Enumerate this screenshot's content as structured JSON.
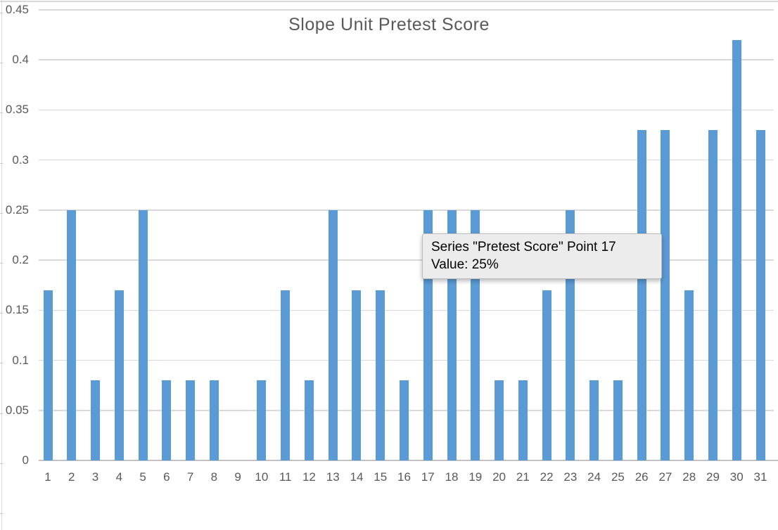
{
  "chart_data": {
    "type": "bar",
    "title": "Slope Unit Pretest Score",
    "series_name": "Pretest Score",
    "categories": [
      "1",
      "2",
      "3",
      "4",
      "5",
      "6",
      "7",
      "8",
      "9",
      "10",
      "11",
      "12",
      "13",
      "14",
      "15",
      "16",
      "17",
      "18",
      "19",
      "20",
      "21",
      "22",
      "23",
      "24",
      "25",
      "26",
      "27",
      "28",
      "29",
      "30",
      "31"
    ],
    "values": [
      0.17,
      0.25,
      0.08,
      0.17,
      0.25,
      0.08,
      0.08,
      0.08,
      0,
      0.08,
      0.17,
      0.08,
      0.25,
      0.17,
      0.17,
      0.08,
      0.25,
      0.25,
      0.25,
      0.08,
      0.08,
      0.17,
      0.25,
      0.08,
      0.08,
      0.33,
      0.33,
      0.17,
      0.33,
      0.42,
      0.33
    ],
    "xlabel": "",
    "ylabel": "",
    "ylim": [
      0,
      0.45
    ],
    "y_ticks": [
      "0",
      "0.05",
      "0.1",
      "0.15",
      "0.2",
      "0.25",
      "0.3",
      "0.35",
      "0.4",
      "0.45"
    ],
    "grid": true,
    "legend": false
  },
  "tooltip": {
    "line1": "Series \"Pretest Score\" Point 17",
    "line2": "Value: 25%"
  },
  "colors": {
    "bar": "#5B9BD5",
    "gridline": "#D9D9D9",
    "baseline": "#C2C2C2",
    "edge_line": "#D9D9D9",
    "tick_mark": "#C9C9C9",
    "axis_label": "#595959",
    "title": "#595959",
    "tooltip_bg": "#ECECEC",
    "tooltip_border": "#BDBDBD",
    "tooltip_text": "#000000"
  }
}
